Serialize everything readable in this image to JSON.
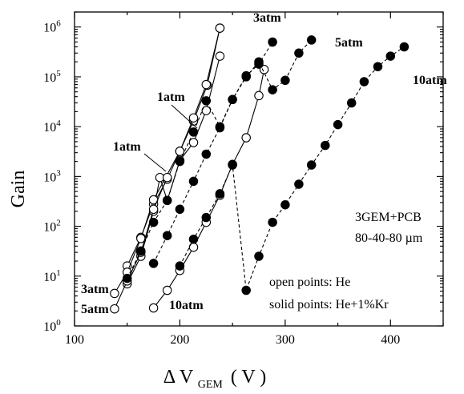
{
  "chart_data": {
    "type": "scatter",
    "title": "",
    "xlabel": {
      "main": "Δ V",
      "sub": "GEM",
      "unit": "( V )"
    },
    "ylabel": "Gain",
    "xlim": [
      100,
      450
    ],
    "ylim": [
      1,
      2000000
    ],
    "y_scale": "log",
    "x_ticks": [
      100,
      200,
      300,
      400
    ],
    "x_tick_labels": [
      "100",
      "200",
      "300",
      "400"
    ],
    "y_ticks": [
      1,
      10,
      100,
      1000,
      10000,
      100000,
      1000000
    ],
    "y_tick_labels": [
      {
        "base": "10",
        "exp": "0"
      },
      {
        "base": "10",
        "exp": "1"
      },
      {
        "base": "10",
        "exp": "2"
      },
      {
        "base": "10",
        "exp": "3"
      },
      {
        "base": "10",
        "exp": "4"
      },
      {
        "base": "10",
        "exp": "5"
      },
      {
        "base": "10",
        "exp": "6"
      }
    ],
    "grid": false,
    "series": [
      {
        "name": "1atm",
        "marker": "open",
        "line": "solid",
        "x": [
          150,
          163,
          175,
          188,
          200,
          213,
          226,
          238
        ],
        "y": [
          16,
          60,
          280,
          880,
          3200,
          13000,
          68000,
          950000
        ]
      },
      {
        "name": "1atm",
        "marker": "open",
        "line": "solid",
        "x": [
          150,
          163,
          175,
          181,
          188,
          200,
          213,
          225,
          238
        ],
        "y": [
          7,
          25,
          200,
          950,
          330,
          2100,
          4800,
          21000,
          260000
        ]
      },
      {
        "name": "3atm",
        "marker": "open",
        "line": "solid",
        "x": [
          138,
          150,
          163,
          175,
          200,
          213,
          225,
          238
        ],
        "y": [
          4.5,
          12,
          57,
          340,
          3200,
          15000,
          70000,
          950000
        ]
      },
      {
        "name": "5atm",
        "marker": "open",
        "line": "solid",
        "x": [
          138,
          150,
          163,
          175,
          188
        ],
        "y": [
          2.2,
          8,
          30,
          220,
          950
        ]
      },
      {
        "name": "10atm",
        "marker": "open",
        "line": "solid",
        "x": [
          175,
          188,
          200,
          213,
          225,
          238,
          250,
          263,
          275,
          280
        ],
        "y": [
          2.3,
          5.2,
          13,
          38,
          120,
          420,
          1750,
          6000,
          42000,
          140000
        ]
      },
      {
        "name": "3atm",
        "marker": "solid",
        "line": "dashed",
        "x": [
          150,
          163,
          175,
          188,
          200,
          213,
          225,
          238,
          250,
          263,
          275,
          288
        ],
        "y": [
          9,
          32,
          120,
          330,
          2000,
          7800,
          33000,
          10000,
          35000,
          105000,
          180000,
          500000
        ]
      },
      {
        "name": "5atm",
        "marker": "solid",
        "line": "dashed",
        "x": [
          175,
          188,
          200,
          213,
          225,
          238,
          250,
          263,
          275,
          288,
          300,
          313,
          325
        ],
        "y": [
          18,
          65,
          220,
          800,
          2800,
          9500,
          35000,
          100000,
          200000,
          55000,
          85000,
          300000,
          550000
        ]
      },
      {
        "name": "10atm",
        "marker": "solid",
        "line": "dashed",
        "x": [
          200,
          213,
          225,
          238,
          250,
          263,
          275,
          288,
          300,
          313,
          325,
          338,
          350,
          363,
          375,
          388,
          400,
          413
        ],
        "y": [
          16,
          55,
          150,
          450,
          1700,
          5.2,
          25,
          120,
          270,
          700,
          1700,
          4200,
          11000,
          30000,
          80000,
          160000,
          260000,
          400000
        ]
      }
    ]
  },
  "annotations": [
    {
      "id": "ann-3atm-top",
      "text": "3atm",
      "bold": true
    },
    {
      "id": "ann-5atm-top",
      "text": "5atm",
      "bold": true
    },
    {
      "id": "ann-10atm-top",
      "text": "10atm",
      "bold": true
    },
    {
      "id": "ann-1atm-a",
      "text": "1atm",
      "bold": true
    },
    {
      "id": "ann-1atm-b",
      "text": "1atm",
      "bold": true
    },
    {
      "id": "ann-3atm-bottom",
      "text": "3atm",
      "bold": true
    },
    {
      "id": "ann-5atm-bottom",
      "text": "5atm",
      "bold": true
    },
    {
      "id": "ann-10atm-bottom",
      "text": "10atm",
      "bold": true
    },
    {
      "id": "ann-config-1",
      "text": "3GEM+PCB",
      "bold": false
    },
    {
      "id": "ann-config-2",
      "text": "80-40-80 µm",
      "bold": false
    },
    {
      "id": "ann-legend-open",
      "text": "open points: He",
      "bold": false
    },
    {
      "id": "ann-legend-solid",
      "text": "solid points: He+1%Kr",
      "bold": false
    }
  ]
}
